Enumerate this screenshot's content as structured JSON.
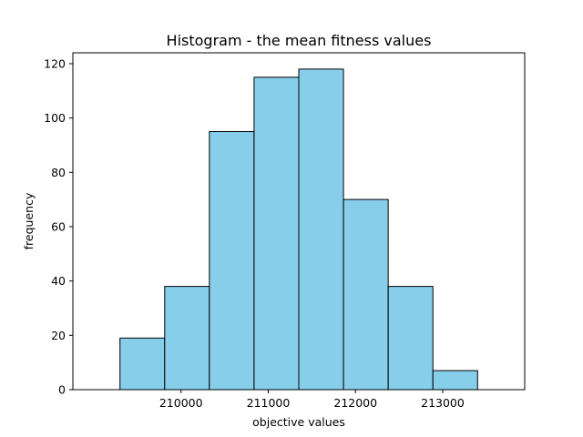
{
  "chart_data": {
    "type": "bar",
    "title": "Histogram - the mean fitness values",
    "xlabel": "objective values",
    "ylabel": "frequency",
    "bin_edges": [
      209300,
      209812.5,
      210325,
      210837.5,
      211350,
      211862.5,
      212375,
      212887.5,
      213400
    ],
    "values": [
      19,
      38,
      95,
      115,
      118,
      70,
      38,
      7
    ],
    "xlim": [
      208760,
      213940
    ],
    "ylim": [
      0,
      124
    ],
    "x_ticks": [
      210000,
      211000,
      212000,
      213000
    ],
    "x_tick_labels": [
      "210000",
      "211000",
      "212000",
      "213000"
    ],
    "y_ticks": [
      0,
      20,
      40,
      60,
      80,
      100,
      120
    ],
    "y_tick_labels": [
      "0",
      "20",
      "40",
      "60",
      "80",
      "100",
      "120"
    ],
    "grid": false,
    "legend": "none",
    "bar_color": "#87ceeb",
    "edge_color": "#000000"
  }
}
